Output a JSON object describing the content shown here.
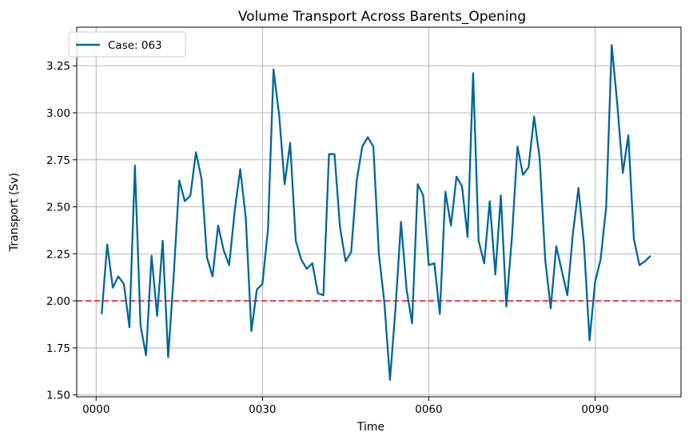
{
  "chart_data": {
    "type": "line",
    "title": "Volume Transport Across Barents_Opening",
    "xlabel": "Time",
    "ylabel": "Transport (Sv)",
    "xlim": [
      -3.5,
      105.5
    ],
    "ylim": [
      1.49,
      3.455
    ],
    "x_ticks": [
      {
        "value": 0,
        "label": "0000"
      },
      {
        "value": 30,
        "label": "0030"
      },
      {
        "value": 60,
        "label": "0060"
      },
      {
        "value": 90,
        "label": "0090"
      }
    ],
    "y_ticks": [
      {
        "value": 1.5,
        "label": "1.50"
      },
      {
        "value": 1.75,
        "label": "1.75"
      },
      {
        "value": 2.0,
        "label": "2.00"
      },
      {
        "value": 2.25,
        "label": "2.25"
      },
      {
        "value": 2.5,
        "label": "2.50"
      },
      {
        "value": 2.75,
        "label": "2.75"
      },
      {
        "value": 3.0,
        "label": "3.00"
      },
      {
        "value": 3.25,
        "label": "3.25"
      }
    ],
    "grid": true,
    "legend": "top-left",
    "reference_line": {
      "y": 2.0,
      "color": "#e41a1c",
      "style": "dashed"
    },
    "series": [
      {
        "name": "Case: 063",
        "color": "#006699",
        "x": [
          1,
          2,
          3,
          4,
          5,
          6,
          7,
          8,
          9,
          10,
          11,
          12,
          13,
          14,
          15,
          16,
          17,
          18,
          19,
          20,
          21,
          22,
          23,
          24,
          25,
          26,
          27,
          28,
          29,
          30,
          31,
          32,
          33,
          34,
          35,
          36,
          37,
          38,
          39,
          40,
          41,
          42,
          43,
          44,
          45,
          46,
          47,
          48,
          49,
          50,
          51,
          52,
          53,
          54,
          55,
          56,
          57,
          58,
          59,
          60,
          61,
          62,
          63,
          64,
          65,
          66,
          67,
          68,
          69,
          70,
          71,
          72,
          73,
          74,
          75,
          76,
          77,
          78,
          79,
          80,
          81,
          82,
          83,
          84,
          85,
          86,
          87,
          88,
          89,
          90,
          91,
          92,
          93,
          94,
          95,
          96,
          97,
          98,
          99,
          100
        ],
        "values": [
          1.93,
          2.3,
          2.07,
          2.13,
          2.09,
          1.86,
          2.72,
          1.87,
          1.71,
          2.24,
          1.92,
          2.32,
          1.7,
          2.14,
          2.64,
          2.53,
          2.56,
          2.79,
          2.65,
          2.23,
          2.13,
          2.4,
          2.27,
          2.19,
          2.48,
          2.7,
          2.44,
          1.84,
          2.06,
          2.09,
          2.38,
          3.23,
          2.99,
          2.62,
          2.84,
          2.32,
          2.22,
          2.17,
          2.2,
          2.04,
          2.03,
          2.78,
          2.78,
          2.39,
          2.21,
          2.26,
          2.64,
          2.82,
          2.87,
          2.82,
          2.25,
          1.99,
          1.58,
          1.96,
          2.42,
          2.06,
          1.88,
          2.62,
          2.56,
          2.19,
          2.2,
          1.93,
          2.58,
          2.4,
          2.66,
          2.61,
          2.34,
          3.21,
          2.32,
          2.2,
          2.53,
          2.14,
          2.56,
          1.97,
          2.34,
          2.82,
          2.67,
          2.71,
          2.98,
          2.76,
          2.22,
          1.96,
          2.29,
          2.16,
          2.03,
          2.36,
          2.6,
          2.3,
          1.79,
          2.1,
          2.22,
          2.5,
          3.36,
          3.05,
          2.68,
          2.88,
          2.33,
          2.19,
          2.21,
          2.24
        ]
      }
    ]
  }
}
